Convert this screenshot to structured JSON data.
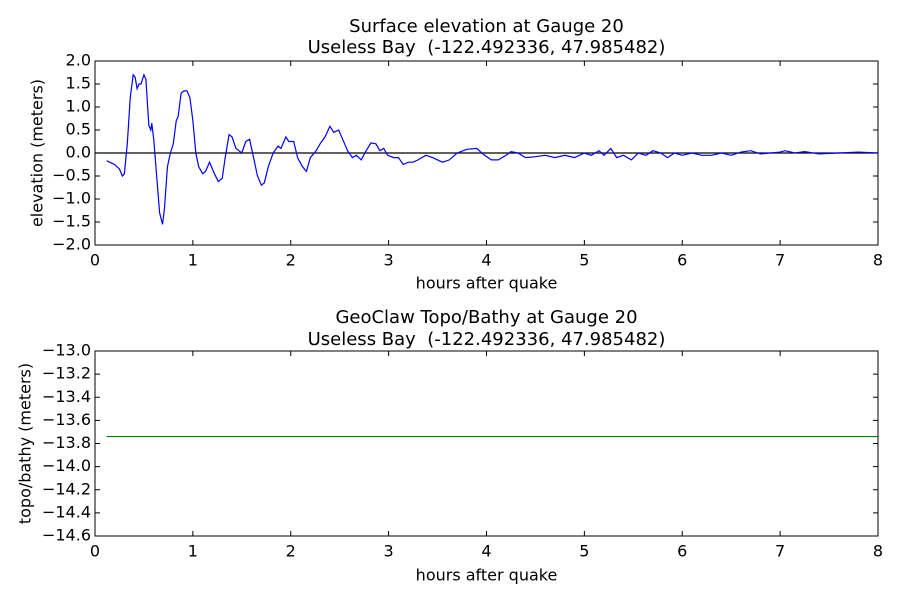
{
  "chart_data": [
    {
      "type": "line",
      "title": "Surface elevation at Gauge 20",
      "subtitle": "Useless Bay  (-122.492336, 47.985482)",
      "xlabel": "hours after quake",
      "ylabel": "elevation (meters)",
      "color": "#0000ff",
      "hline": 0,
      "hline_color": "#000000",
      "x": [
        0.12,
        0.15,
        0.2,
        0.25,
        0.28,
        0.3,
        0.33,
        0.36,
        0.39,
        0.41,
        0.43,
        0.45,
        0.47,
        0.5,
        0.52,
        0.55,
        0.57,
        0.58,
        0.6,
        0.63,
        0.66,
        0.69,
        0.71,
        0.74,
        0.77,
        0.8,
        0.83,
        0.85,
        0.88,
        0.91,
        0.94,
        0.97,
        1.0,
        1.03,
        1.06,
        1.1,
        1.13,
        1.17,
        1.22,
        1.26,
        1.3,
        1.33,
        1.37,
        1.4,
        1.44,
        1.47,
        1.5,
        1.54,
        1.58,
        1.62,
        1.66,
        1.7,
        1.73,
        1.77,
        1.82,
        1.87,
        1.9,
        1.95,
        1.98,
        2.03,
        2.07,
        2.12,
        2.16,
        2.2,
        2.26,
        2.3,
        2.35,
        2.4,
        2.44,
        2.49,
        2.53,
        2.58,
        2.63,
        2.67,
        2.72,
        2.77,
        2.82,
        2.87,
        2.91,
        2.95,
        2.99,
        3.05,
        3.1,
        3.15,
        3.2,
        3.25,
        3.3,
        3.38,
        3.45,
        3.5,
        3.55,
        3.62,
        3.7,
        3.8,
        3.9,
        3.98,
        4.05,
        4.12,
        4.2,
        4.25,
        4.32,
        4.4,
        4.5,
        4.6,
        4.7,
        4.8,
        4.9,
        5.0,
        5.07,
        5.15,
        5.2,
        5.27,
        5.33,
        5.4,
        5.48,
        5.55,
        5.63,
        5.7,
        5.78,
        5.85,
        5.92,
        6.0,
        6.1,
        6.2,
        6.3,
        6.4,
        6.5,
        6.6,
        6.7,
        6.8,
        6.9,
        7.0,
        7.05,
        7.15,
        7.25,
        7.4,
        7.6,
        7.8,
        8.0
      ],
      "values": [
        -0.17,
        -0.2,
        -0.25,
        -0.35,
        -0.5,
        -0.45,
        0.2,
        1.2,
        1.7,
        1.65,
        1.4,
        1.5,
        1.5,
        1.7,
        1.6,
        0.6,
        0.5,
        0.65,
        0.3,
        -0.5,
        -1.3,
        -1.55,
        -1.2,
        -0.3,
        0.0,
        0.2,
        0.7,
        0.8,
        1.3,
        1.35,
        1.35,
        1.2,
        0.7,
        0.0,
        -0.3,
        -0.45,
        -0.4,
        -0.2,
        -0.45,
        -0.62,
        -0.55,
        -0.1,
        0.4,
        0.35,
        0.1,
        0.05,
        0.0,
        0.25,
        0.3,
        -0.1,
        -0.5,
        -0.7,
        -0.65,
        -0.3,
        0.0,
        0.15,
        0.1,
        0.35,
        0.25,
        0.25,
        -0.1,
        -0.3,
        -0.4,
        -0.1,
        0.05,
        0.2,
        0.35,
        0.58,
        0.45,
        0.5,
        0.3,
        0.05,
        -0.1,
        -0.05,
        -0.15,
        0.05,
        0.22,
        0.2,
        0.05,
        0.1,
        -0.05,
        -0.1,
        -0.1,
        -0.25,
        -0.2,
        -0.2,
        -0.15,
        -0.05,
        -0.1,
        -0.15,
        -0.2,
        -0.15,
        0.0,
        0.08,
        0.1,
        -0.05,
        -0.15,
        -0.15,
        -0.05,
        0.03,
        0.0,
        -0.1,
        -0.08,
        -0.05,
        -0.1,
        -0.05,
        -0.1,
        0.0,
        -0.05,
        0.05,
        -0.05,
        0.1,
        -0.1,
        -0.05,
        -0.15,
        0.0,
        -0.05,
        0.05,
        0.0,
        -0.1,
        0.0,
        -0.05,
        0.0,
        -0.05,
        -0.05,
        0.0,
        -0.05,
        0.02,
        0.05,
        -0.02,
        0.0,
        0.02,
        0.05,
        0.0,
        0.03,
        -0.02,
        0.0,
        0.02,
        0.0
      ],
      "xlim": [
        0,
        8
      ],
      "xticks": [
        0,
        1,
        2,
        3,
        4,
        5,
        6,
        7,
        8
      ],
      "ylim": [
        -2,
        2
      ],
      "yticks": [
        {
          "value": -2,
          "label": "−2.0"
        },
        {
          "value": -1.5,
          "label": "−1.5"
        },
        {
          "value": -1,
          "label": "−1.0"
        },
        {
          "value": -0.5,
          "label": "−0.5"
        },
        {
          "value": 0,
          "label": "0.0"
        },
        {
          "value": 0.5,
          "label": "0.5"
        },
        {
          "value": 1,
          "label": "1.0"
        },
        {
          "value": 1.5,
          "label": "1.5"
        },
        {
          "value": 2,
          "label": "2.0"
        }
      ]
    },
    {
      "type": "line",
      "title": "GeoClaw Topo/Bathy at Gauge 20",
      "subtitle": "Useless Bay  (-122.492336, 47.985482)",
      "xlabel": "hours after quake",
      "ylabel": "topo/bathy (meters)",
      "color": "#008000",
      "x": [
        0.12,
        8.0
      ],
      "values": [
        -13.74,
        -13.74
      ],
      "xlim": [
        0,
        8
      ],
      "xticks": [
        0,
        1,
        2,
        3,
        4,
        5,
        6,
        7,
        8
      ],
      "ylim": [
        -14.6,
        -13.0
      ],
      "yticks": [
        {
          "value": -14.6,
          "label": "−14.6"
        },
        {
          "value": -14.4,
          "label": "−14.4"
        },
        {
          "value": -14.2,
          "label": "−14.2"
        },
        {
          "value": -14.0,
          "label": "−14.0"
        },
        {
          "value": -13.8,
          "label": "−13.8"
        },
        {
          "value": -13.6,
          "label": "−13.6"
        },
        {
          "value": -13.4,
          "label": "−13.4"
        },
        {
          "value": -13.2,
          "label": "−13.2"
        },
        {
          "value": -13.0,
          "label": "−13.0"
        }
      ]
    }
  ]
}
